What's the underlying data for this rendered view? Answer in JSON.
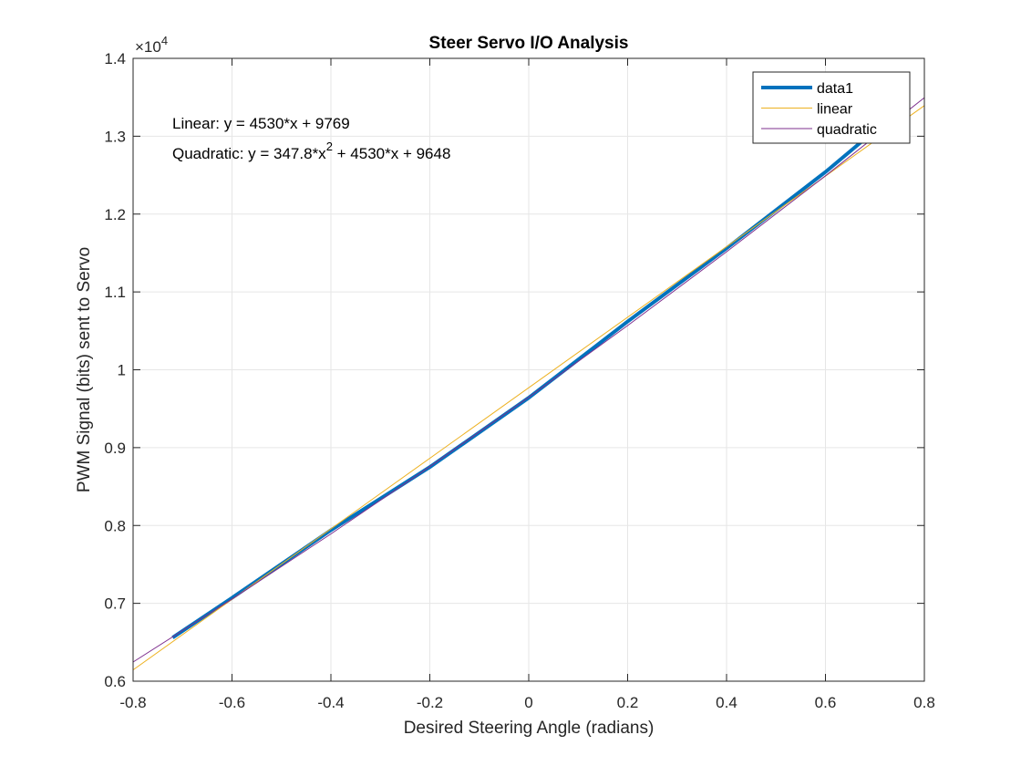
{
  "chart_data": {
    "type": "line",
    "title": "Steer Servo I/O Analysis",
    "xlabel": "Desired Steering Angle (radians)",
    "ylabel": "PWM Signal (bits) sent to Servo",
    "xlim": [
      -0.8,
      0.8
    ],
    "ylim": [
      6000,
      14000
    ],
    "x_ticks": [
      -0.8,
      -0.6,
      -0.4,
      -0.2,
      0,
      0.2,
      0.4,
      0.6,
      0.8
    ],
    "x_tick_labels": [
      "-0.8",
      "-0.6",
      "-0.4",
      "-0.2",
      "0",
      "0.2",
      "0.4",
      "0.6",
      "0.8"
    ],
    "y_ticks": [
      6000,
      7000,
      8000,
      9000,
      10000,
      11000,
      12000,
      13000,
      14000
    ],
    "y_tick_labels": [
      "0.6",
      "0.7",
      "0.8",
      "0.9",
      "1",
      "1.1",
      "1.2",
      "1.3",
      "1.4"
    ],
    "y_exponent": {
      "base": "×10",
      "power": "4"
    },
    "grid": true,
    "legend_position": "top-right",
    "series": [
      {
        "name": "data1",
        "color": "#0072BD",
        "x": [
          -0.72,
          -0.6,
          -0.4,
          -0.2,
          0,
          0.2,
          0.4,
          0.6,
          0.72
        ],
        "y": [
          6560,
          7070,
          7940,
          8750,
          9640,
          10620,
          11560,
          12540,
          13180
        ]
      },
      {
        "name": "linear",
        "color": "#EDB120",
        "x": [
          -0.8,
          0.8
        ],
        "y": [
          6145,
          13393
        ]
      },
      {
        "name": "quadratic",
        "color": "#7E2F8E",
        "x": [
          -0.8,
          -0.6,
          -0.4,
          -0.2,
          0,
          0.2,
          0.4,
          0.6,
          0.8
        ],
        "y": [
          6246,
          7055,
          7892,
          8756,
          9648,
          10568,
          11516,
          12491,
          13495
        ]
      }
    ],
    "annotations": {
      "linear_eq": "Linear:  y = 4530*x + 9769",
      "quad_eq_a": "Quadratic:  y = 347.8*x",
      "quad_eq_sup": "2",
      "quad_eq_b": " + 4530*x + 9648"
    }
  }
}
